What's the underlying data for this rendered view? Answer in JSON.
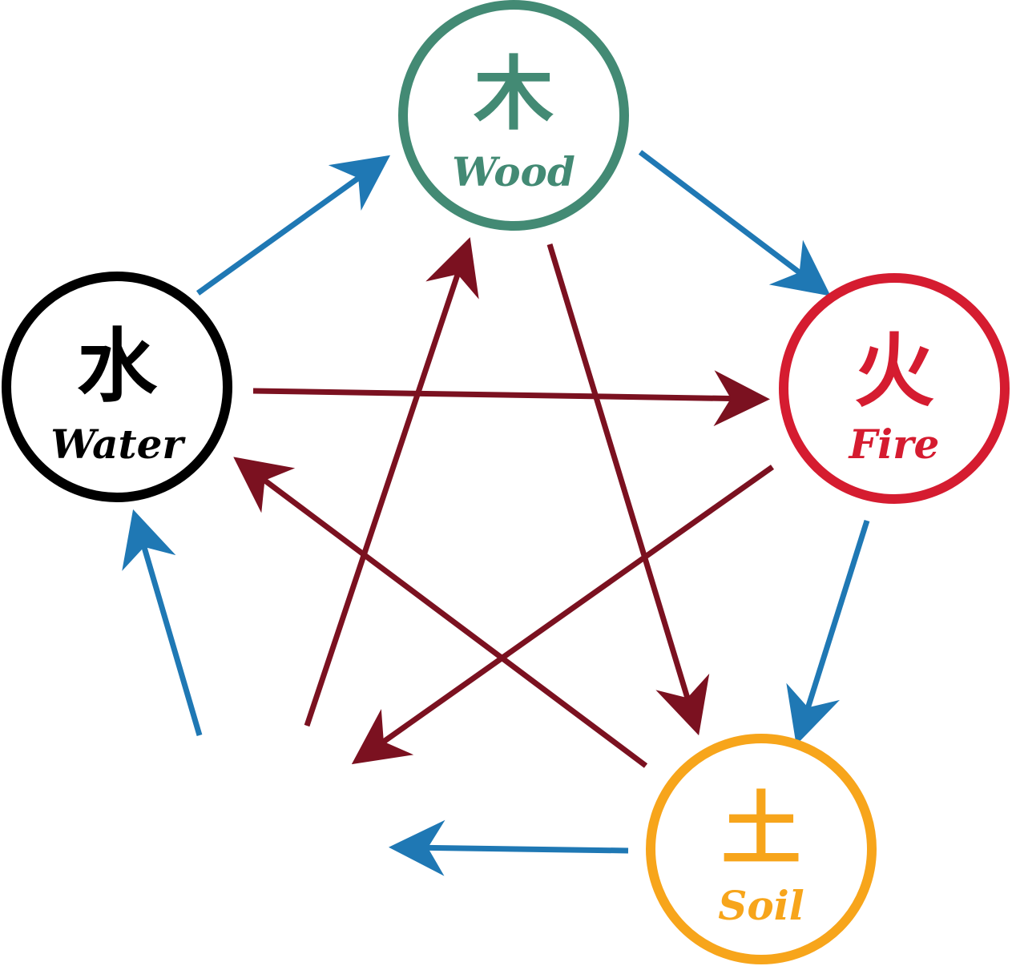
{
  "colors": {
    "generating_arrow": "#1f78b4",
    "controlling_arrow": "#7b1120",
    "background": "#ffffff"
  },
  "elements": {
    "wood": {
      "char": "木",
      "label": "Wood",
      "color": "#438a74"
    },
    "fire": {
      "char": "火",
      "label": "Fire",
      "color": "#d51c30"
    },
    "soil": {
      "char": "土",
      "label": "Soil",
      "color": "#f7a51b"
    },
    "water": {
      "char": "水",
      "label": "Water",
      "color": "#000000"
    }
  },
  "generating_cycle": [
    {
      "from": "water",
      "to": "wood"
    },
    {
      "from": "wood",
      "to": "fire"
    },
    {
      "from": "fire",
      "to": "soil"
    },
    {
      "from": "soil",
      "to": "(missing)"
    },
    {
      "from": "(missing)",
      "to": "water"
    }
  ],
  "controlling_cycle": [
    {
      "from": "water",
      "to": "fire"
    },
    {
      "from": "wood",
      "to": "soil"
    },
    {
      "from": "soil",
      "to": "water"
    },
    {
      "from": "fire",
      "to": "(missing)"
    },
    {
      "from": "(missing)",
      "to": "wood"
    }
  ]
}
